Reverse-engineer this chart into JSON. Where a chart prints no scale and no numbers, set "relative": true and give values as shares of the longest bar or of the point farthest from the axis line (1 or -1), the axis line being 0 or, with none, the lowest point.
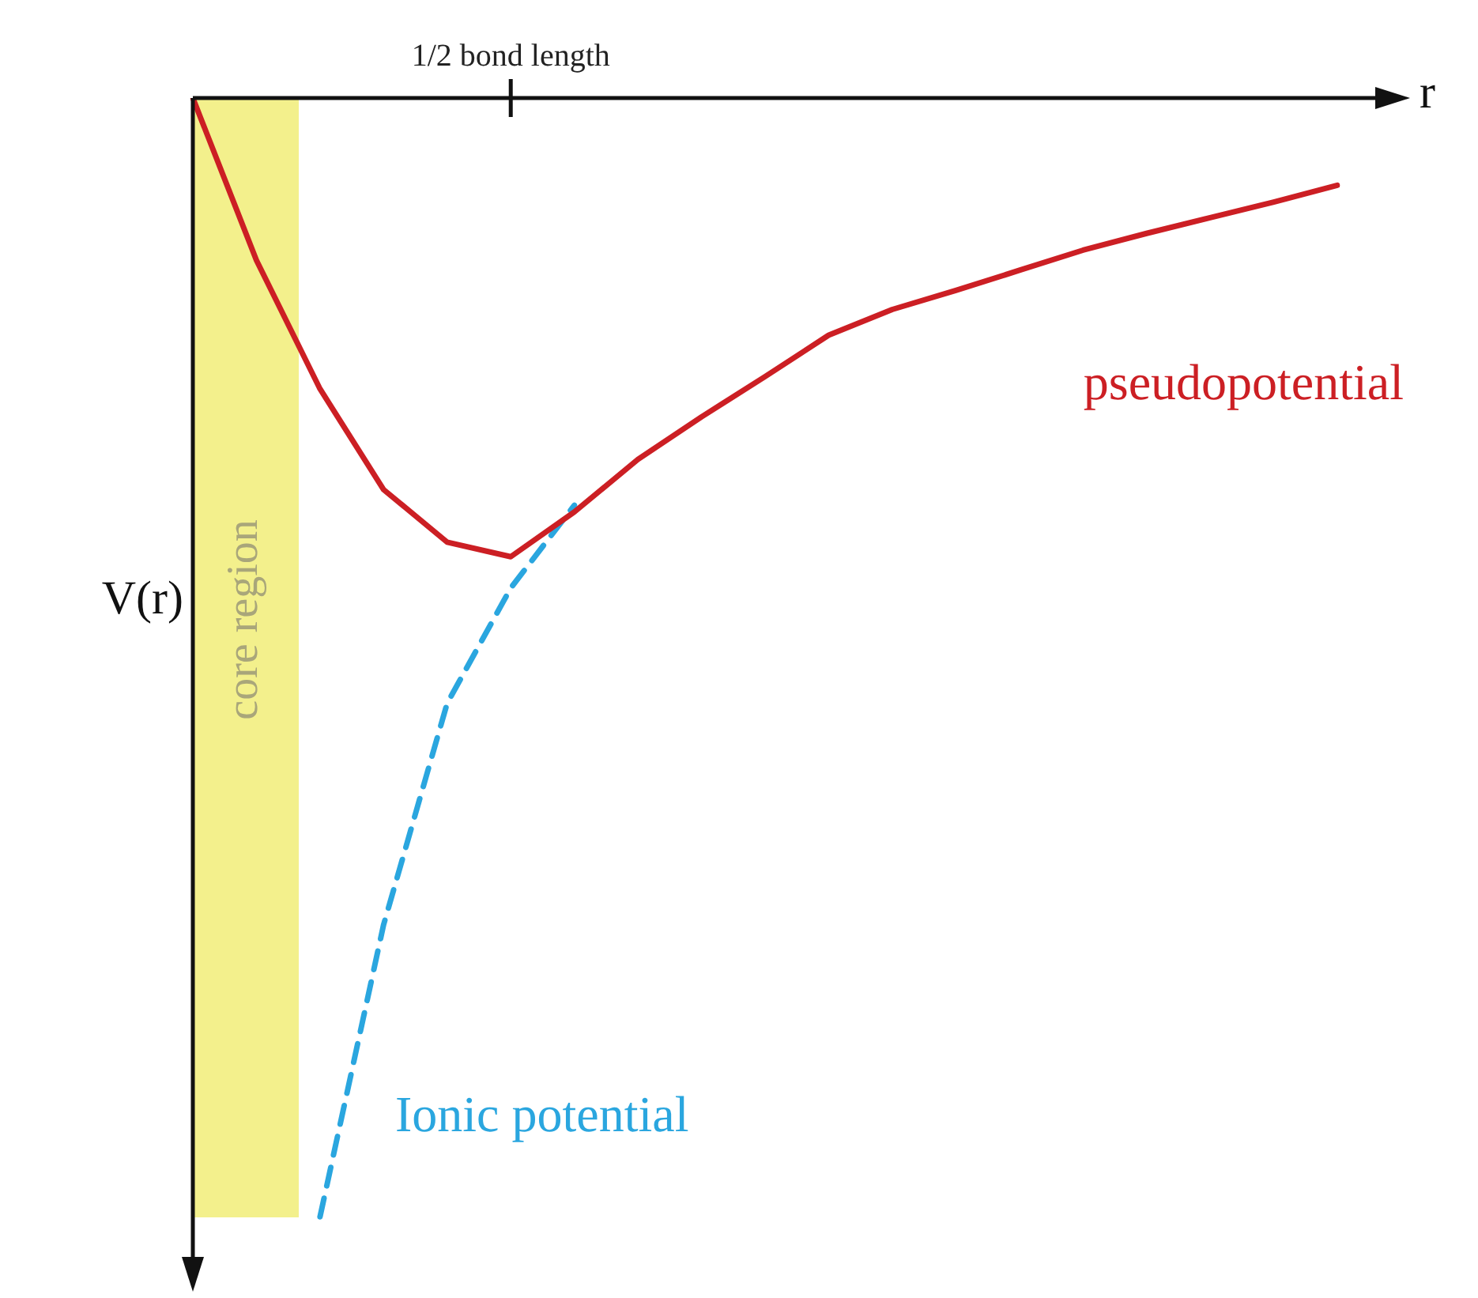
{
  "chart_data": {
    "type": "line",
    "relative": true,
    "xlabel": "r",
    "ylabel": "V(r)",
    "categories": [
      null,
      null,
      null,
      null,
      null,
      null,
      null,
      null,
      null,
      null,
      null,
      null,
      null,
      null,
      null,
      null,
      null,
      null,
      null
    ],
    "annotations": [
      "1/2 bond length",
      "core region"
    ],
    "legend": false,
    "marker": "none",
    "series": [
      {
        "name": "pseudopotential",
        "color": "#cc1f24",
        "line_style": "solid",
        "values": [
          0,
          -0.145,
          -0.26,
          -0.35,
          -0.397,
          -0.41,
          -0.37,
          -0.323,
          -0.285,
          -0.249,
          -0.212,
          -0.189,
          -0.172,
          -0.154,
          -0.136,
          -0.121,
          -0.107,
          -0.093,
          -0.078
        ]
      },
      {
        "name": "Ionic potential",
        "color": "#2aa6df",
        "line_style": "dashed",
        "values": [
          null,
          null,
          -1,
          -0.739,
          -0.541,
          -0.438,
          -0.364,
          null,
          null,
          null,
          null,
          null,
          null,
          null,
          null,
          null,
          null,
          null,
          null
        ]
      }
    ]
  }
}
